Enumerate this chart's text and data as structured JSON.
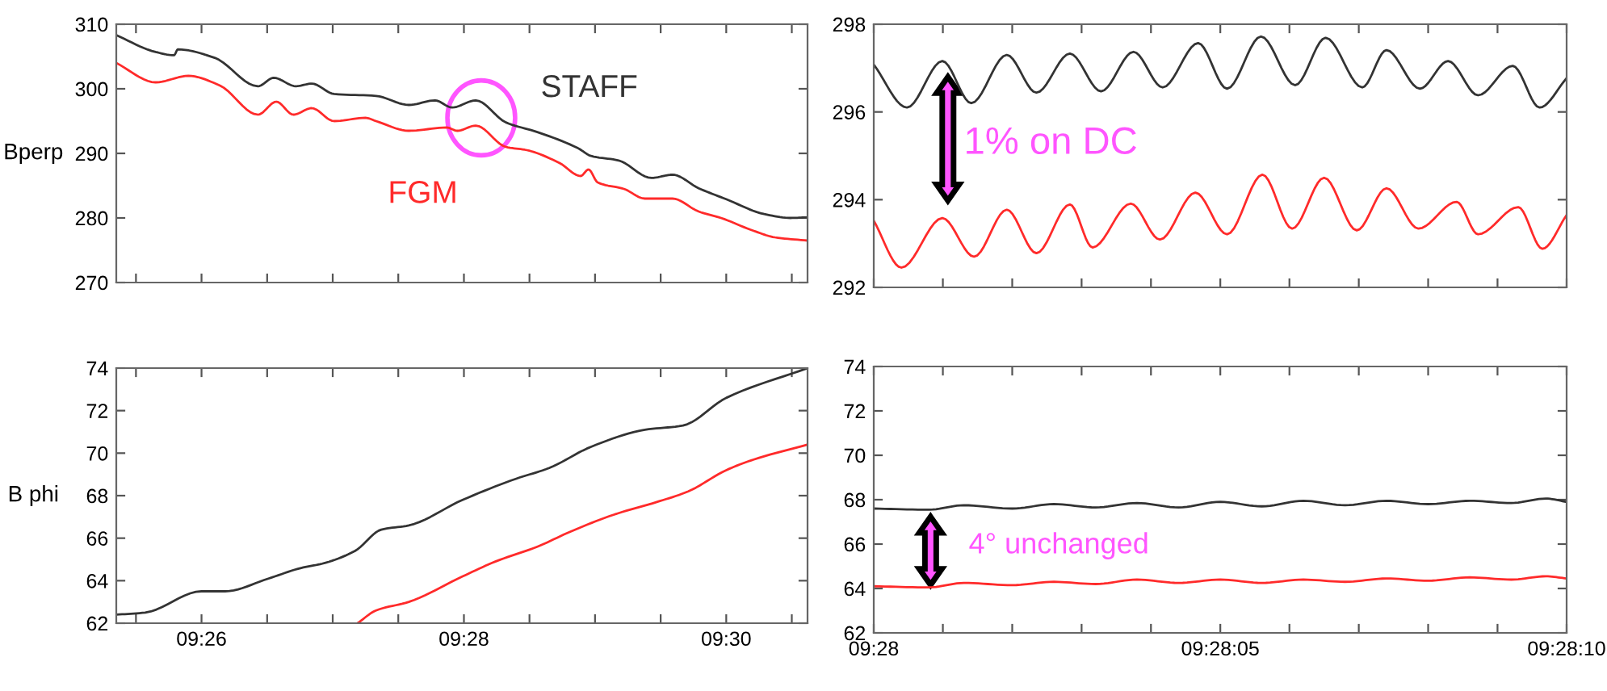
{
  "chart_data": [
    {
      "type": "line",
      "ylabel": "Bperp",
      "xlim": [
        9.4225,
        9.51033
      ],
      "ylim": [
        270,
        310
      ],
      "yticks": [
        270,
        280,
        290,
        300,
        310
      ],
      "tick_labels": "y",
      "xticks": [
        {
          "value": 9.425,
          "label": null
        },
        {
          "value": 9.43333,
          "label": null
        },
        {
          "value": 9.44167,
          "label": null
        },
        {
          "value": 9.45,
          "label": null
        },
        {
          "value": 9.45833,
          "label": null
        },
        {
          "value": 9.46667,
          "label": null
        },
        {
          "value": 9.475,
          "label": null
        },
        {
          "value": 9.48333,
          "label": null
        },
        {
          "value": 9.49167,
          "label": null
        },
        {
          "value": 9.5,
          "label": null
        },
        {
          "value": 9.50833,
          "label": null
        }
      ],
      "series": [
        {
          "name": "STAFF",
          "color": "#333333",
          "x": [
            9.4225,
            9.4275,
            9.42983,
            9.43033,
            9.435,
            9.4405,
            9.4425,
            9.44533,
            9.44733,
            9.45017,
            9.4555,
            9.45967,
            9.463,
            9.46517,
            9.46817,
            9.472,
            9.476,
            9.48117,
            9.48283,
            9.48633,
            9.4905,
            9.49317,
            9.4965,
            9.5,
            9.50483,
            9.50817,
            9.51033
          ],
          "values": [
            308.3,
            305.7,
            305.2,
            306.1,
            304.8,
            300.4,
            301.7,
            300.4,
            300.8,
            299.2,
            298.9,
            297.5,
            298.2,
            297.1,
            298.2,
            294.8,
            293.3,
            290.8,
            289.6,
            288.9,
            286.2,
            286.7,
            284.6,
            282.9,
            280.6,
            280.0,
            280.1
          ]
        },
        {
          "name": "FGM",
          "color": "#ff2a2a",
          "x": [
            9.4225,
            9.4275,
            9.43167,
            9.43567,
            9.4405,
            9.44283,
            9.445,
            9.44733,
            9.45017,
            9.45417,
            9.4555,
            9.45967,
            9.4645,
            9.46583,
            9.46817,
            9.472,
            9.47467,
            9.47883,
            9.4815,
            9.4825,
            9.48367,
            9.487,
            9.48967,
            9.49317,
            9.4965,
            9.49933,
            9.5035,
            9.50617,
            9.51033
          ],
          "values": [
            304.0,
            301.0,
            302.0,
            300.5,
            296.0,
            298.0,
            296.0,
            297.0,
            295.0,
            295.5,
            295.0,
            293.5,
            294.0,
            293.5,
            294.3,
            291.0,
            290.5,
            288.5,
            286.5,
            287.5,
            285.5,
            284.5,
            283.0,
            283.0,
            281.0,
            280.0,
            278.0,
            277.0,
            276.5
          ]
        }
      ]
    },
    {
      "type": "line",
      "xlim": [
        9.466667,
        9.469444
      ],
      "ylim": [
        292,
        298
      ],
      "yticks": [
        292,
        294,
        296,
        298
      ],
      "tick_labels": "y",
      "xticks": [
        {
          "value": 9.466667,
          "label": null
        },
        {
          "value": 9.466944,
          "label": null
        },
        {
          "value": 9.467222,
          "label": null
        },
        {
          "value": 9.4675,
          "label": null
        },
        {
          "value": 9.467778,
          "label": null
        },
        {
          "value": 9.468056,
          "label": null
        },
        {
          "value": 9.468333,
          "label": null
        },
        {
          "value": 9.468611,
          "label": null
        },
        {
          "value": 9.468889,
          "label": null
        },
        {
          "value": 9.469167,
          "label": null
        },
        {
          "value": 9.469444,
          "label": null
        }
      ],
      "annotations": [
        "1% on DC"
      ],
      "series": [
        {
          "color": "#333333",
          "x": [
            9.466667,
            9.4668,
            9.466942,
            9.467058,
            9.4672,
            9.467319,
            9.467453,
            9.467578,
            9.467708,
            9.467825,
            9.467967,
            9.468083,
            9.468219,
            9.468356,
            9.468478,
            9.468625,
            9.468722,
            9.468856,
            9.468969,
            9.469089,
            9.469228,
            9.469336,
            9.469444
          ],
          "values": [
            297.08,
            296.1,
            297.16,
            296.2,
            297.3,
            296.44,
            297.33,
            296.47,
            297.37,
            296.56,
            297.57,
            296.53,
            297.72,
            296.61,
            297.69,
            296.56,
            297.41,
            296.53,
            297.16,
            296.38,
            297.05,
            296.1,
            296.77
          ]
        },
        {
          "color": "#ff2a2a",
          "x": [
            9.466667,
            9.466778,
            9.466942,
            9.467069,
            9.4672,
            9.467319,
            9.467453,
            9.467544,
            9.467697,
            9.467814,
            9.467956,
            9.468083,
            9.468225,
            9.468344,
            9.468472,
            9.468603,
            9.468722,
            9.46885,
            9.469003,
            9.469089,
            9.46925,
            9.469347,
            9.469444
          ],
          "values": [
            293.52,
            292.45,
            293.58,
            292.7,
            293.77,
            292.78,
            293.89,
            292.91,
            293.91,
            293.09,
            294.16,
            293.21,
            294.57,
            293.34,
            294.5,
            293.3,
            294.26,
            293.34,
            293.95,
            293.21,
            293.83,
            292.88,
            293.65
          ]
        }
      ]
    },
    {
      "type": "line",
      "ylabel": "B phi",
      "xlim": [
        9.4225,
        9.51033
      ],
      "ylim": [
        62,
        74
      ],
      "yticks": [
        62,
        64,
        66,
        68,
        70,
        72,
        74
      ],
      "xticks": [
        {
          "value": 9.425,
          "label": null
        },
        {
          "value": 9.43333,
          "label": "09:26"
        },
        {
          "value": 9.44167,
          "label": null
        },
        {
          "value": 9.45,
          "label": null
        },
        {
          "value": 9.45833,
          "label": null
        },
        {
          "value": 9.46667,
          "label": "09:28"
        },
        {
          "value": 9.475,
          "label": null
        },
        {
          "value": 9.48333,
          "label": null
        },
        {
          "value": 9.49167,
          "label": null
        },
        {
          "value": 9.5,
          "label": "09:30"
        },
        {
          "value": 9.50833,
          "label": null
        }
      ],
      "series": [
        {
          "color": "#333333",
          "x": [
            9.4225,
            9.42617,
            9.43333,
            9.43633,
            9.44183,
            9.446,
            9.44867,
            9.45283,
            9.45617,
            9.45967,
            9.4665,
            9.47333,
            9.4775,
            9.48283,
            9.48967,
            9.4945,
            9.5,
            9.51033
          ],
          "values": [
            62.4,
            62.5,
            63.5,
            63.5,
            64.1,
            64.6,
            64.8,
            65.4,
            66.4,
            66.6,
            67.8,
            68.8,
            69.3,
            70.3,
            71.1,
            71.3,
            72.6,
            74.0
          ]
        },
        {
          "color": "#ff2a2a",
          "x": [
            9.45317,
            9.4555,
            9.45967,
            9.4665,
            9.47067,
            9.476,
            9.48017,
            9.48567,
            9.49117,
            9.49517,
            9.5,
            9.5035,
            9.51033
          ],
          "values": [
            62.0,
            62.6,
            63.0,
            64.2,
            64.9,
            65.6,
            66.3,
            67.1,
            67.7,
            68.2,
            69.2,
            69.7,
            70.4
          ]
        }
      ]
    },
    {
      "type": "line",
      "xlim": [
        9.466667,
        9.469444
      ],
      "ylim": [
        62,
        74
      ],
      "yticks": [
        62,
        64,
        66,
        68,
        70,
        72,
        74
      ],
      "xticks": [
        {
          "value": 9.466667,
          "label": "09:28"
        },
        {
          "value": 9.466944,
          "label": null
        },
        {
          "value": 9.467222,
          "label": null
        },
        {
          "value": 9.4675,
          "label": null
        },
        {
          "value": 9.467778,
          "label": null
        },
        {
          "value": 9.468056,
          "label": "09:28:05"
        },
        {
          "value": 9.468333,
          "label": null
        },
        {
          "value": 9.468611,
          "label": null
        },
        {
          "value": 9.468889,
          "label": null
        },
        {
          "value": 9.469167,
          "label": null
        },
        {
          "value": 9.469444,
          "label": "09:28:10"
        }
      ],
      "annotations": [
        "4° unchanged"
      ],
      "series": [
        {
          "color": "#333333",
          "x": [
            9.466667,
            9.466889,
            9.467028,
            9.467222,
            9.467389,
            9.467556,
            9.467722,
            9.467889,
            9.468056,
            9.468222,
            9.468389,
            9.468556,
            9.468722,
            9.468889,
            9.469056,
            9.469222,
            9.469361,
            9.469444
          ],
          "values": [
            67.6,
            67.55,
            67.75,
            67.6,
            67.8,
            67.65,
            67.85,
            67.65,
            67.9,
            67.7,
            67.95,
            67.75,
            67.95,
            67.8,
            67.95,
            67.85,
            68.05,
            67.9
          ]
        },
        {
          "color": "#ff2a2a",
          "x": [
            9.466667,
            9.466889,
            9.467028,
            9.467222,
            9.467389,
            9.467556,
            9.467722,
            9.467889,
            9.468056,
            9.468222,
            9.468389,
            9.468556,
            9.468722,
            9.468889,
            9.469056,
            9.469222,
            9.469361,
            9.469444
          ],
          "values": [
            64.1,
            64.05,
            64.25,
            64.15,
            64.3,
            64.2,
            64.4,
            64.25,
            64.4,
            64.25,
            64.4,
            64.3,
            64.45,
            64.35,
            64.5,
            64.4,
            64.55,
            64.45
          ]
        }
      ]
    }
  ]
}
